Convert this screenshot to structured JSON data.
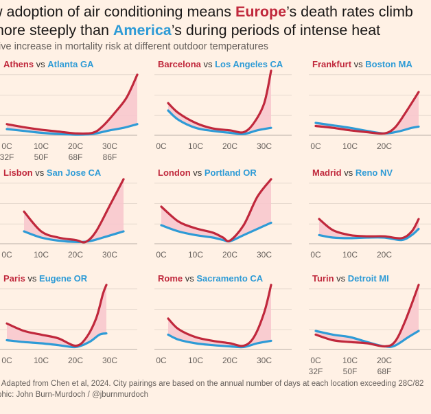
{
  "title": {
    "line1_a": "w adoption of air conditioning means ",
    "line1_eu": "Europe",
    "line1_b": "’s death rates climb",
    "line2_a": "more steeply than ",
    "line2_us": "America",
    "line2_b": "’s during periods of intense heat"
  },
  "subtitle": "tive increase in mortality risk at different outdoor temperatures",
  "footer": {
    "source": ": Adapted from Chen et al, 2024. City pairings are based on the annual number of days at each location exceeding 28C/82",
    "graphic": "phic: John Burn-Murdoch / @jburnmurdoch"
  },
  "colors": {
    "europe": "#C0283C",
    "america": "#2E9BD6",
    "fill": "#F8C6CC",
    "background": "#FFF1E5"
  },
  "chart_data": [
    {
      "type": "line",
      "vs": "vs",
      "eu_city": "Athens",
      "us_city": "Atlanta GA",
      "x_ticks": [
        "0C",
        "10C",
        "20C",
        "30C"
      ],
      "x_ticks_f": [
        "32F",
        "50F",
        "68F",
        "86F"
      ],
      "eu": [
        [
          0,
          0.18
        ],
        [
          5,
          0.13
        ],
        [
          10,
          0.09
        ],
        [
          15,
          0.06
        ],
        [
          20,
          0.03
        ],
        [
          25,
          0.04
        ],
        [
          28,
          0.15
        ],
        [
          32,
          0.4
        ],
        [
          35,
          0.62
        ],
        [
          38,
          0.98
        ]
      ],
      "us": [
        [
          0,
          0.1
        ],
        [
          5,
          0.07
        ],
        [
          10,
          0.04
        ],
        [
          15,
          0.02
        ],
        [
          20,
          0.01
        ],
        [
          25,
          0.02
        ],
        [
          30,
          0.08
        ],
        [
          34,
          0.12
        ],
        [
          38,
          0.18
        ]
      ]
    },
    {
      "type": "line",
      "vs": "vs",
      "eu_city": "Barcelona",
      "us_city": "Los Angeles CA",
      "x_ticks": [
        "0C",
        "10C",
        "20C",
        "30C"
      ],
      "x_ticks_f": [],
      "eu": [
        [
          2,
          0.52
        ],
        [
          5,
          0.36
        ],
        [
          10,
          0.2
        ],
        [
          15,
          0.11
        ],
        [
          20,
          0.08
        ],
        [
          24,
          0.05
        ],
        [
          27,
          0.2
        ],
        [
          30,
          0.52
        ],
        [
          32,
          1.2
        ]
      ],
      "us": [
        [
          2,
          0.4
        ],
        [
          5,
          0.25
        ],
        [
          10,
          0.12
        ],
        [
          15,
          0.07
        ],
        [
          20,
          0.04
        ],
        [
          24,
          0.02
        ],
        [
          28,
          0.08
        ],
        [
          32,
          0.12
        ]
      ]
    },
    {
      "type": "line",
      "vs": "vs",
      "eu_city": "Frankfurt",
      "us_city": "Boston MA",
      "x_ticks": [
        "0C",
        "10C",
        "20C"
      ],
      "x_ticks_f": [],
      "eu": [
        [
          0,
          0.15
        ],
        [
          5,
          0.12
        ],
        [
          10,
          0.08
        ],
        [
          15,
          0.05
        ],
        [
          20,
          0.03
        ],
        [
          23,
          0.12
        ],
        [
          26,
          0.35
        ],
        [
          30,
          0.7
        ]
      ],
      "us": [
        [
          0,
          0.2
        ],
        [
          5,
          0.16
        ],
        [
          10,
          0.12
        ],
        [
          15,
          0.07
        ],
        [
          20,
          0.03
        ],
        [
          24,
          0.06
        ],
        [
          28,
          0.12
        ],
        [
          30,
          0.14
        ]
      ]
    },
    {
      "type": "line",
      "vs": "vs",
      "eu_city": "Lisbon",
      "us_city": "San Jose CA",
      "x_ticks": [
        "0C",
        "10C",
        "20C",
        "30C"
      ],
      "x_ticks_f": [],
      "eu": [
        [
          5,
          0.52
        ],
        [
          10,
          0.2
        ],
        [
          15,
          0.1
        ],
        [
          20,
          0.06
        ],
        [
          23,
          0.03
        ],
        [
          26,
          0.2
        ],
        [
          30,
          0.62
        ],
        [
          34,
          1.4
        ]
      ],
      "us": [
        [
          5,
          0.2
        ],
        [
          10,
          0.1
        ],
        [
          15,
          0.05
        ],
        [
          20,
          0.03
        ],
        [
          24,
          0.04
        ],
        [
          28,
          0.1
        ],
        [
          34,
          0.2
        ]
      ]
    },
    {
      "type": "line",
      "vs": "vs",
      "eu_city": "London",
      "us_city": "Portland OR",
      "x_ticks": [
        "0C",
        "10C",
        "20C",
        "30C"
      ],
      "x_ticks_f": [],
      "eu": [
        [
          0,
          0.6
        ],
        [
          5,
          0.36
        ],
        [
          10,
          0.25
        ],
        [
          15,
          0.18
        ],
        [
          18,
          0.1
        ],
        [
          20,
          0.05
        ],
        [
          24,
          0.3
        ],
        [
          28,
          0.76
        ],
        [
          32,
          1.5
        ]
      ],
      "us": [
        [
          0,
          0.3
        ],
        [
          5,
          0.2
        ],
        [
          10,
          0.14
        ],
        [
          15,
          0.1
        ],
        [
          18,
          0.06
        ],
        [
          20,
          0.04
        ],
        [
          24,
          0.14
        ],
        [
          28,
          0.24
        ],
        [
          32,
          0.34
        ]
      ]
    },
    {
      "type": "line",
      "vs": "vs",
      "eu_city": "Madrid",
      "us_city": "Reno NV",
      "x_ticks": [
        "0C",
        "10C",
        "20C"
      ],
      "x_ticks_f": [],
      "eu": [
        [
          1,
          0.4
        ],
        [
          5,
          0.22
        ],
        [
          10,
          0.14
        ],
        [
          15,
          0.12
        ],
        [
          20,
          0.12
        ],
        [
          25,
          0.09
        ],
        [
          28,
          0.2
        ],
        [
          30,
          0.4
        ]
      ],
      "us": [
        [
          1,
          0.14
        ],
        [
          5,
          0.1
        ],
        [
          10,
          0.09
        ],
        [
          15,
          0.1
        ],
        [
          20,
          0.1
        ],
        [
          25,
          0.06
        ],
        [
          28,
          0.14
        ],
        [
          30,
          0.24
        ]
      ]
    },
    {
      "type": "line",
      "vs": "vs",
      "eu_city": "Paris",
      "us_city": "Eugene OR",
      "x_ticks": [
        "0C",
        "10C",
        "20C",
        "30C"
      ],
      "x_ticks_f": [],
      "eu": [
        [
          0,
          0.42
        ],
        [
          5,
          0.3
        ],
        [
          10,
          0.24
        ],
        [
          15,
          0.18
        ],
        [
          20,
          0.06
        ],
        [
          23,
          0.18
        ],
        [
          26,
          0.5
        ],
        [
          28,
          0.9
        ],
        [
          29,
          1.6
        ]
      ],
      "us": [
        [
          0,
          0.15
        ],
        [
          5,
          0.12
        ],
        [
          10,
          0.1
        ],
        [
          15,
          0.07
        ],
        [
          20,
          0.04
        ],
        [
          24,
          0.12
        ],
        [
          27,
          0.24
        ],
        [
          29,
          0.26
        ]
      ]
    },
    {
      "type": "line",
      "vs": "vs",
      "eu_city": "Rome",
      "us_city": "Sacramento CA",
      "x_ticks": [
        "0C",
        "10C",
        "20C",
        "30C"
      ],
      "x_ticks_f": [],
      "eu": [
        [
          2,
          0.5
        ],
        [
          5,
          0.33
        ],
        [
          10,
          0.2
        ],
        [
          15,
          0.14
        ],
        [
          20,
          0.1
        ],
        [
          24,
          0.06
        ],
        [
          27,
          0.2
        ],
        [
          30,
          0.6
        ],
        [
          32,
          1.14
        ]
      ],
      "us": [
        [
          2,
          0.24
        ],
        [
          5,
          0.16
        ],
        [
          10,
          0.1
        ],
        [
          15,
          0.07
        ],
        [
          20,
          0.05
        ],
        [
          24,
          0.04
        ],
        [
          28,
          0.1
        ],
        [
          32,
          0.14
        ]
      ]
    },
    {
      "type": "line",
      "vs": "vs",
      "eu_city": "Turin",
      "us_city": "Detroit MI",
      "x_ticks": [
        "0C",
        "10C",
        "20C"
      ],
      "x_ticks_f": [
        "32F",
        "50F",
        "68F"
      ],
      "eu": [
        [
          0,
          0.24
        ],
        [
          5,
          0.15
        ],
        [
          10,
          0.12
        ],
        [
          15,
          0.1
        ],
        [
          20,
          0.05
        ],
        [
          23,
          0.12
        ],
        [
          26,
          0.45
        ],
        [
          30,
          1.3
        ]
      ],
      "us": [
        [
          0,
          0.3
        ],
        [
          5,
          0.24
        ],
        [
          10,
          0.2
        ],
        [
          15,
          0.12
        ],
        [
          20,
          0.05
        ],
        [
          23,
          0.06
        ],
        [
          27,
          0.2
        ],
        [
          30,
          0.3
        ]
      ]
    }
  ]
}
